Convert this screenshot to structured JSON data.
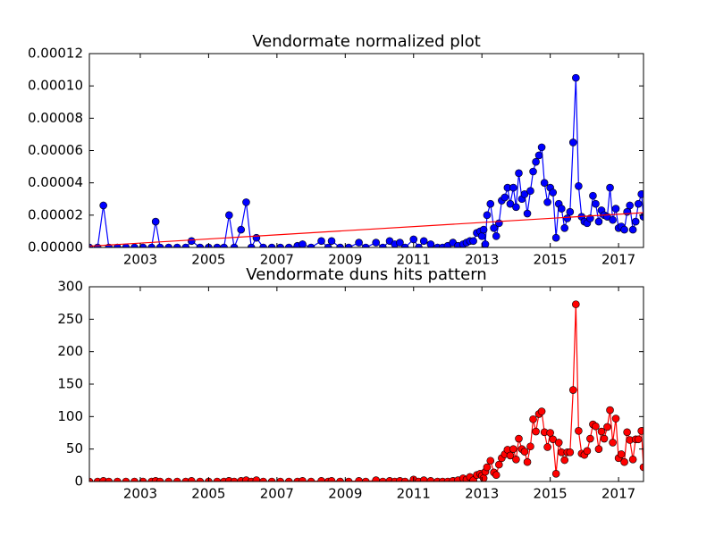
{
  "chart_data": [
    {
      "type": "line",
      "title": "Vendormate normalized plot",
      "x": [
        2001.51,
        2001.75,
        2001.92,
        2002.08,
        2002.33,
        2002.58,
        2002.83,
        2003.08,
        2003.33,
        2003.45,
        2003.58,
        2003.83,
        2004.08,
        2004.33,
        2004.5,
        2004.75,
        2005.0,
        2005.25,
        2005.45,
        2005.6,
        2005.75,
        2005.95,
        2006.1,
        2006.25,
        2006.4,
        2006.6,
        2006.85,
        2007.1,
        2007.35,
        2007.6,
        2007.75,
        2008.0,
        2008.3,
        2008.5,
        2008.6,
        2008.85,
        2009.1,
        2009.4,
        2009.6,
        2009.9,
        2010.1,
        2010.3,
        2010.45,
        2010.6,
        2010.75,
        2011.0,
        2011.15,
        2011.3,
        2011.5,
        2011.7,
        2011.85,
        2012.0,
        2012.15,
        2012.3,
        2012.45,
        2012.55,
        2012.65,
        2012.75,
        2012.85,
        2012.95,
        2013.0,
        2013.05,
        2013.1,
        2013.15,
        2013.25,
        2013.35,
        2013.42,
        2013.5,
        2013.58,
        2013.67,
        2013.75,
        2013.83,
        2013.92,
        2014.0,
        2014.08,
        2014.17,
        2014.25,
        2014.33,
        2014.42,
        2014.5,
        2014.58,
        2014.67,
        2014.75,
        2014.83,
        2014.92,
        2015.0,
        2015.08,
        2015.17,
        2015.25,
        2015.33,
        2015.42,
        2015.5,
        2015.58,
        2015.67,
        2015.75,
        2015.83,
        2015.92,
        2016.0,
        2016.08,
        2016.17,
        2016.25,
        2016.33,
        2016.42,
        2016.5,
        2016.58,
        2016.67,
        2016.75,
        2016.83,
        2016.92,
        2017.0,
        2017.08,
        2017.17,
        2017.25,
        2017.33,
        2017.42,
        2017.5,
        2017.58,
        2017.67,
        2017.73
      ],
      "series": [
        {
          "color": "#0000ff",
          "marker": "circle",
          "values": [
            0,
            0,
            2.6e-05,
            0,
            0,
            0,
            0,
            0,
            0,
            1.6e-05,
            0,
            0,
            0,
            0,
            4e-06,
            0,
            0,
            0,
            0,
            2e-05,
            0,
            1.1e-05,
            2.8e-05,
            0,
            6e-06,
            0,
            0,
            0,
            0,
            1e-06,
            2e-06,
            0,
            4e-06,
            0,
            4e-06,
            0,
            0,
            3e-06,
            0,
            3e-06,
            0,
            4e-06,
            2e-06,
            3e-06,
            0,
            5e-06,
            0,
            4e-06,
            2e-06,
            0,
            0,
            1e-06,
            3e-06,
            1e-06,
            2e-06,
            3e-06,
            4e-06,
            4e-06,
            9e-06,
            1e-05,
            7e-06,
            1.1e-05,
            2e-06,
            2e-05,
            2.7e-05,
            1.2e-05,
            7e-06,
            1.5e-05,
            2.9e-05,
            3.1e-05,
            3.7e-05,
            2.7e-05,
            3.7e-05,
            2.5e-05,
            4.6e-05,
            3e-05,
            3.3e-05,
            2.1e-05,
            3.5e-05,
            4.7e-05,
            5.3e-05,
            5.7e-05,
            6.2e-05,
            4e-05,
            2.8e-05,
            3.7e-05,
            3.4e-05,
            6e-06,
            2.7e-05,
            2.4e-05,
            1.2e-05,
            1.8e-05,
            2.2e-05,
            6.5e-05,
            0.000105,
            3.8e-05,
            1.9e-05,
            1.6e-05,
            1.5e-05,
            1.8e-05,
            3.2e-05,
            2.7e-05,
            1.6e-05,
            2.3e-05,
            2e-05,
            1.9e-05,
            3.7e-05,
            1.7e-05,
            2.4e-05,
            1.2e-05,
            1.3e-05,
            1.1e-05,
            2.2e-05,
            2.6e-05,
            1.1e-05,
            1.6e-05,
            2.7e-05,
            3.3e-05,
            1.9e-05
          ]
        },
        {
          "color": "#ff0000",
          "marker": "none",
          "x": [
            2001.51,
            2017.73
          ],
          "values": [
            8e-07,
            2.15e-05
          ]
        }
      ],
      "xlim": [
        2001.51,
        2017.73
      ],
      "xticks": [
        2003,
        2005,
        2007,
        2009,
        2011,
        2013,
        2015,
        2017
      ],
      "ylim": [
        0,
        0.00012
      ],
      "yticks": [
        {
          "value": 0,
          "label": "0.00000"
        },
        {
          "value": 2e-05,
          "label": "0.00002"
        },
        {
          "value": 4e-05,
          "label": "0.00004"
        },
        {
          "value": 6e-05,
          "label": "0.00006"
        },
        {
          "value": 8e-05,
          "label": "0.00008"
        },
        {
          "value": 0.0001,
          "label": "0.00010"
        },
        {
          "value": 0.00012,
          "label": "0.00012"
        }
      ]
    },
    {
      "type": "line",
      "title": "Vendormate duns hits pattern",
      "x": [
        2001.51,
        2001.75,
        2001.92,
        2002.08,
        2002.33,
        2002.58,
        2002.83,
        2003.08,
        2003.33,
        2003.45,
        2003.58,
        2003.83,
        2004.08,
        2004.33,
        2004.5,
        2004.75,
        2005.0,
        2005.25,
        2005.45,
        2005.6,
        2005.75,
        2005.95,
        2006.1,
        2006.25,
        2006.4,
        2006.6,
        2006.85,
        2007.1,
        2007.35,
        2007.6,
        2007.75,
        2008.0,
        2008.3,
        2008.5,
        2008.6,
        2008.85,
        2009.1,
        2009.4,
        2009.6,
        2009.9,
        2010.1,
        2010.3,
        2010.45,
        2010.6,
        2010.75,
        2011.0,
        2011.15,
        2011.3,
        2011.5,
        2011.7,
        2011.85,
        2012.0,
        2012.15,
        2012.3,
        2012.45,
        2012.55,
        2012.65,
        2012.75,
        2012.85,
        2012.95,
        2013.0,
        2013.05,
        2013.1,
        2013.15,
        2013.25,
        2013.35,
        2013.42,
        2013.5,
        2013.58,
        2013.67,
        2013.75,
        2013.83,
        2013.92,
        2014.0,
        2014.08,
        2014.17,
        2014.25,
        2014.33,
        2014.42,
        2014.5,
        2014.58,
        2014.67,
        2014.75,
        2014.83,
        2014.92,
        2015.0,
        2015.08,
        2015.17,
        2015.25,
        2015.33,
        2015.42,
        2015.5,
        2015.58,
        2015.67,
        2015.75,
        2015.83,
        2015.92,
        2016.0,
        2016.08,
        2016.17,
        2016.25,
        2016.33,
        2016.42,
        2016.5,
        2016.58,
        2016.67,
        2016.75,
        2016.83,
        2016.92,
        2017.0,
        2017.08,
        2017.17,
        2017.25,
        2017.33,
        2017.42,
        2017.5,
        2017.58,
        2017.67,
        2017.73
      ],
      "series": [
        {
          "color": "#ff0000",
          "marker": "circle",
          "values": [
            0,
            0,
            1,
            0,
            0,
            0,
            0,
            0,
            0,
            1,
            0,
            0,
            0,
            0,
            1,
            0,
            0,
            0,
            0,
            1,
            0,
            1,
            2,
            0,
            2,
            0,
            0,
            0,
            0,
            0,
            1,
            0,
            1,
            0,
            1,
            0,
            0,
            1,
            0,
            2,
            0,
            1,
            0,
            1,
            0,
            3,
            0,
            2,
            1,
            0,
            0,
            0,
            1,
            2,
            5,
            3,
            7,
            2,
            10,
            12,
            9,
            5,
            15,
            22,
            32,
            14,
            10,
            26,
            36,
            42,
            49,
            40,
            50,
            34,
            66,
            50,
            46,
            30,
            54,
            96,
            77,
            104,
            108,
            76,
            53,
            75,
            65,
            12,
            60,
            45,
            33,
            45,
            45,
            141,
            273,
            78,
            43,
            41,
            47,
            66,
            88,
            85,
            50,
            77,
            66,
            84,
            110,
            60,
            97,
            36,
            42,
            30,
            76,
            64,
            34,
            65,
            65,
            78,
            22
          ]
        }
      ],
      "xlim": [
        2001.51,
        2017.73
      ],
      "xticks": [
        2003,
        2005,
        2007,
        2009,
        2011,
        2013,
        2015,
        2017
      ],
      "ylim": [
        0,
        300
      ],
      "yticks": [
        0,
        50,
        100,
        150,
        200,
        250,
        300
      ]
    }
  ]
}
